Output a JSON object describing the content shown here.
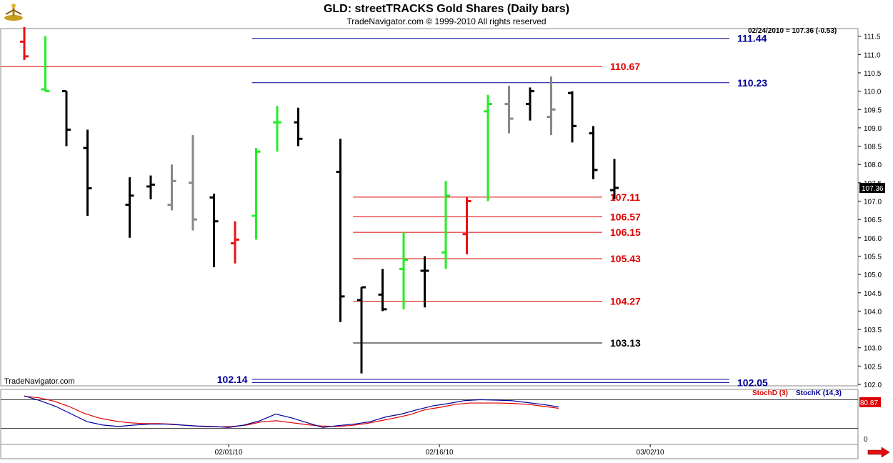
{
  "header": {
    "title": "GLD:  streetTRACKS Gold Shares  (Daily bars)",
    "subtitle": "TradeNavigator.com © 1999-2010 All rights reserved",
    "readout": "02/24/2010 = 107.36 (-0.53)",
    "brand": "TradeNavigator.com"
  },
  "colors": {
    "up_bar": "#22ee22",
    "down_bar": "#000000",
    "highlight_bar": "#ee1111",
    "neutral_bar": "#888888",
    "red_level": "#dd0000",
    "blue_level": "#000099",
    "black_level": "#000000",
    "stoch_d": "#dd0000",
    "stoch_k": "#0000cc"
  },
  "chart_data": [
    {
      "type": "ohlc",
      "title": "GLD:  streetTRACKS Gold Shares  (Daily bars)",
      "ylim": [
        102.0,
        111.7
      ],
      "y_ticks": [
        "111.5",
        "111.0",
        "110.5",
        "110.0",
        "109.5",
        "109.0",
        "108.5",
        "108.0",
        "107.5",
        "107.0",
        "106.5",
        "106.0",
        "105.5",
        "105.0",
        "104.5",
        "104.0",
        "103.5",
        "103.0",
        "102.5",
        "102.0"
      ],
      "x_ticks": [
        "02/01/10",
        "02/16/10",
        "03/02/10"
      ],
      "last_price_label": "107.36",
      "bars": [
        {
          "i": 1,
          "high": 111.75,
          "low": 110.85,
          "open": 111.35,
          "close": 110.95,
          "c": "highlight"
        },
        {
          "i": 2,
          "high": 111.5,
          "low": 110.0,
          "open": 110.05,
          "close": 110.0,
          "c": "up"
        },
        {
          "i": 3,
          "high": 110.0,
          "low": 108.5,
          "open": 110.0,
          "close": 108.95,
          "c": "down"
        },
        {
          "i": 4,
          "high": 108.95,
          "low": 106.6,
          "open": 108.45,
          "close": 107.35,
          "c": "down"
        },
        {
          "i": 6,
          "high": 107.65,
          "low": 106.0,
          "open": 106.9,
          "close": 107.15,
          "c": "down"
        },
        {
          "i": 7,
          "high": 107.7,
          "low": 107.05,
          "open": 107.4,
          "close": 107.45,
          "c": "down"
        },
        {
          "i": 8,
          "high": 108.0,
          "low": 106.75,
          "open": 106.9,
          "close": 107.55,
          "c": "neutral"
        },
        {
          "i": 9,
          "high": 108.8,
          "low": 106.2,
          "open": 107.5,
          "close": 106.5,
          "c": "neutral"
        },
        {
          "i": 10,
          "high": 107.2,
          "low": 105.2,
          "open": 107.1,
          "close": 106.45,
          "c": "down"
        },
        {
          "i": 11,
          "high": 106.45,
          "low": 105.3,
          "open": 105.85,
          "close": 105.95,
          "c": "highlight"
        },
        {
          "i": 12,
          "high": 108.45,
          "low": 105.95,
          "open": 106.6,
          "close": 108.35,
          "c": "up"
        },
        {
          "i": 13,
          "high": 109.6,
          "low": 108.35,
          "open": 109.15,
          "close": 109.15,
          "c": "up"
        },
        {
          "i": 14,
          "high": 109.55,
          "low": 108.5,
          "open": 109.15,
          "close": 108.7,
          "c": "down"
        },
        {
          "i": 16,
          "high": 108.7,
          "low": 103.7,
          "open": 107.8,
          "close": 104.4,
          "c": "down"
        },
        {
          "i": 17,
          "high": 104.65,
          "low": 102.3,
          "open": 104.3,
          "close": 104.65,
          "c": "down"
        },
        {
          "i": 18,
          "high": 105.15,
          "low": 104.0,
          "open": 104.45,
          "close": 104.05,
          "c": "down"
        },
        {
          "i": 19,
          "high": 106.15,
          "low": 104.05,
          "open": 105.15,
          "close": 105.4,
          "c": "up"
        },
        {
          "i": 20,
          "high": 105.5,
          "low": 104.1,
          "open": 105.1,
          "close": 105.1,
          "c": "down"
        },
        {
          "i": 21,
          "high": 107.55,
          "low": 105.15,
          "open": 105.6,
          "close": 107.15,
          "c": "up"
        },
        {
          "i": 22,
          "high": 107.1,
          "low": 105.55,
          "open": 106.1,
          "close": 107.0,
          "c": "highlight"
        },
        {
          "i": 23,
          "high": 109.9,
          "low": 107.0,
          "open": 109.45,
          "close": 109.65,
          "c": "up"
        },
        {
          "i": 24,
          "high": 110.15,
          "low": 108.85,
          "open": 109.65,
          "close": 109.25,
          "c": "neutral"
        },
        {
          "i": 25,
          "high": 110.1,
          "low": 109.2,
          "open": 109.65,
          "close": 110.0,
          "c": "down"
        },
        {
          "i": 26,
          "high": 110.4,
          "low": 108.8,
          "open": 109.3,
          "close": 109.5,
          "c": "neutral"
        },
        {
          "i": 27,
          "high": 110.0,
          "low": 108.6,
          "open": 109.95,
          "close": 109.05,
          "c": "down"
        },
        {
          "i": 28,
          "high": 109.05,
          "low": 107.6,
          "open": 108.85,
          "close": 107.85,
          "c": "down"
        },
        {
          "i": 29,
          "high": 108.15,
          "low": 107.05,
          "open": 107.3,
          "close": 107.36,
          "c": "down"
        }
      ],
      "levels": [
        {
          "value": 111.44,
          "label": "111.44",
          "color": "blue",
          "from_i": 11.8
        },
        {
          "value": 110.67,
          "label": "110.67",
          "color": "red",
          "from_i": 0
        },
        {
          "value": 110.23,
          "label": "110.23",
          "color": "blue",
          "from_i": 11.8
        },
        {
          "value": 107.11,
          "label": "107.11",
          "color": "red",
          "from_i": 16.6
        },
        {
          "value": 106.57,
          "label": "106.57",
          "color": "red",
          "from_i": 16.6
        },
        {
          "value": 106.15,
          "label": "106.15",
          "color": "red",
          "from_i": 16.6
        },
        {
          "value": 105.43,
          "label": "105.43",
          "color": "red",
          "from_i": 16.6
        },
        {
          "value": 104.27,
          "label": "104.27",
          "color": "red",
          "from_i": 16.6
        },
        {
          "value": 103.13,
          "label": "103.13",
          "color": "black",
          "from_i": 16.6
        },
        {
          "value": 102.14,
          "label": "102.14",
          "color": "blue",
          "from_i": 11.8,
          "label_side": "left"
        },
        {
          "value": 102.05,
          "label": "102.05",
          "color": "blue",
          "from_i": 11.8
        }
      ]
    },
    {
      "type": "line",
      "ylim": [
        0,
        100
      ],
      "y_ticks": [
        "0"
      ],
      "last_value_label": "80.87",
      "ref_lines": [
        80,
        20
      ],
      "series": [
        {
          "name": "StochD (3)",
          "color": "red",
          "values": [
            93,
            90,
            83,
            72,
            58,
            48,
            42,
            38,
            36,
            36,
            35,
            32,
            30,
            29,
            30,
            33,
            40,
            42,
            38,
            34,
            31,
            30,
            32,
            36,
            42,
            48,
            55,
            65,
            70,
            76,
            79,
            79,
            79,
            78,
            76,
            72,
            68
          ]
        },
        {
          "name": "StochK (14,3)",
          "color": "blue",
          "values": [
            94,
            84,
            72,
            56,
            40,
            33,
            30,
            33,
            35,
            35,
            33,
            31,
            30,
            28,
            33,
            42,
            56,
            48,
            38,
            28,
            32,
            35,
            40,
            50,
            56,
            65,
            73,
            78,
            84,
            86,
            85,
            84,
            80,
            76,
            71
          ]
        }
      ]
    }
  ]
}
